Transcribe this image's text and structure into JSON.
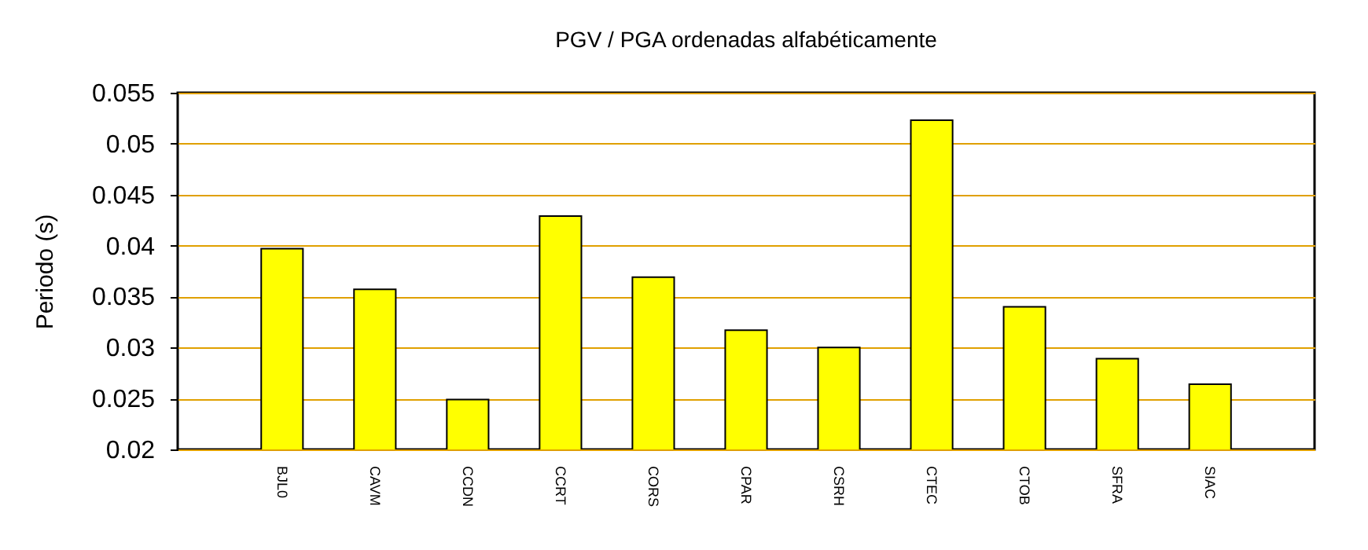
{
  "chart_data": {
    "type": "bar",
    "title": "PGV / PGA ordenadas alfabéticamente",
    "ylabel": "Periodo (s)",
    "categories": [
      "BJL0",
      "CAVM",
      "CCDN",
      "CCRT",
      "CORS",
      "CPAR",
      "CSRH",
      "CTEC",
      "CTOB",
      "SFRA",
      "SIAC"
    ],
    "values": [
      0.0397,
      0.0357,
      0.0249,
      0.0429,
      0.0369,
      0.0317,
      0.03,
      0.0523,
      0.034,
      0.0289,
      0.0264
    ],
    "color": "#ffff00",
    "ylim": [
      0.02,
      0.055
    ],
    "yticks": [
      0.02,
      0.025,
      0.03,
      0.035,
      0.04,
      0.045,
      0.05,
      0.055
    ],
    "grid": "y"
  }
}
